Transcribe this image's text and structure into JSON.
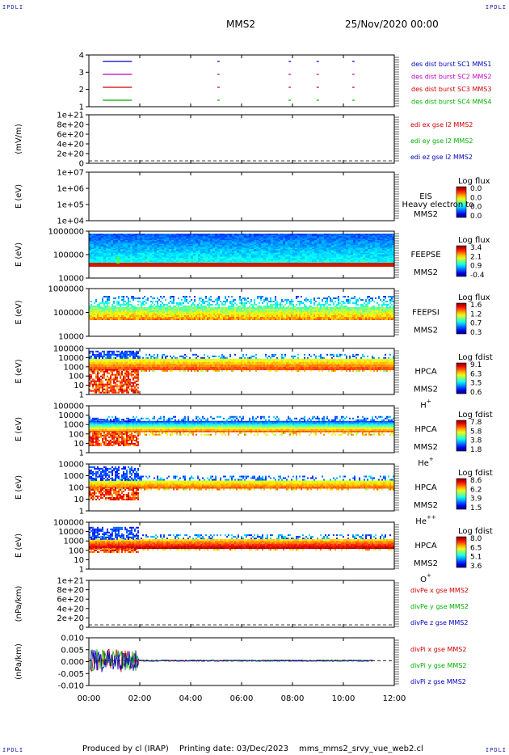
{
  "corner_marks": {
    "tl": "IPDLI",
    "tr": "IPDLI",
    "bl": "IPDLI",
    "br": "IPDLI"
  },
  "header": {
    "mission": "MMS2",
    "date": "25/Nov/2020 00:00"
  },
  "footer": {
    "produced_by": "Produced by cl (IRAP)",
    "printing_date": "Printing date: 03/Dec/2023",
    "script": "mms_mms2_srvy_vue_web2.cl"
  },
  "time_axis": {
    "ticks": [
      "00:00",
      "02:00",
      "04:00",
      "06:00",
      "08:00",
      "10:00",
      "12:00"
    ],
    "range_hours": [
      0,
      12
    ]
  },
  "chart_data": [
    {
      "type": "line",
      "panel": "burst",
      "yticks": [
        "1",
        "2",
        "3",
        "4"
      ],
      "ylim": [
        0.5,
        4.5
      ],
      "series": [
        {
          "name": "des dist burst SC1 MMS1",
          "color": "#0000c0",
          "y": 4,
          "intervals_h": [
            [
              0.45,
              1.6
            ],
            [
              4.95,
              5.0
            ],
            [
              7.75,
              7.8
            ],
            [
              8.85,
              8.9
            ],
            [
              10.25,
              10.3
            ]
          ]
        },
        {
          "name": "des dist burst SC2 MMS2",
          "color": "#c000c0",
          "y": 3,
          "intervals_h": [
            [
              0.45,
              1.6
            ],
            [
              4.95,
              5.0
            ],
            [
              7.75,
              7.8
            ],
            [
              8.85,
              8.9
            ],
            [
              10.25,
              10.3
            ]
          ]
        },
        {
          "name": "des dist burst SC3 MMS3",
          "color": "#d00000",
          "y": 2,
          "intervals_h": [
            [
              0.45,
              1.6
            ],
            [
              4.95,
              5.0
            ],
            [
              7.75,
              7.8
            ],
            [
              8.85,
              8.9
            ],
            [
              10.25,
              10.3
            ]
          ]
        },
        {
          "name": "des dist burst SC4 MMS4",
          "color": "#00b000",
          "y": 1,
          "intervals_h": [
            [
              0.45,
              1.6
            ],
            [
              4.95,
              5.0
            ],
            [
              7.75,
              7.8
            ],
            [
              8.85,
              8.9
            ],
            [
              10.25,
              10.3
            ]
          ]
        }
      ]
    },
    {
      "type": "line",
      "panel": "edi",
      "ylabel": "(mV/m)",
      "yticks": [
        "0",
        "2e+20",
        "4e+20",
        "6e+20",
        "8e+20",
        "1e+21"
      ],
      "ylim": [
        0,
        1e+21
      ],
      "series": [
        {
          "name": "edi ex gse l2 MMS2",
          "color": "#d00000"
        },
        {
          "name": "edi ey gse l2 MMS2",
          "color": "#00b000"
        },
        {
          "name": "edi ez gse l2 MMS2",
          "color": "#0000c0"
        }
      ]
    },
    {
      "type": "heatmap",
      "panel": "eis",
      "ylabel": "E (eV)",
      "yticks": [
        "1e+04",
        "1e+05",
        "1e+06",
        "1e+07"
      ],
      "instrument": "EIS",
      "spacecraft": "MMS2",
      "overlay_text": "Heavy electron to",
      "colorbar": {
        "title": "Log flux",
        "ticks": [
          "0.0",
          "0.0",
          "0.0",
          "0.0"
        ]
      }
    },
    {
      "type": "heatmap",
      "panel": "feepse",
      "ylabel": "E (eV)",
      "yticks": [
        "10000",
        "100000",
        "1000000"
      ],
      "instrument": "FEEPSE",
      "spacecraft": "MMS2",
      "colorbar": {
        "title": "Log flux",
        "ticks": [
          "3.4",
          "2.1",
          "0.9",
          "-0.4"
        ]
      }
    },
    {
      "type": "heatmap",
      "panel": "feepsi",
      "ylabel": "E (eV)",
      "yticks": [
        "10000",
        "100000",
        "1000000"
      ],
      "instrument": "FEEPSI",
      "spacecraft": "MMS2",
      "colorbar": {
        "title": "Log flux",
        "ticks": [
          "1.6",
          "1.2",
          "0.7",
          "0.3"
        ]
      }
    },
    {
      "type": "heatmap",
      "panel": "hpca_h",
      "ylabel": "E (eV)",
      "yticks": [
        "1",
        "10",
        "100",
        "1000",
        "10000",
        "100000"
      ],
      "instrument": "HPCA",
      "spacecraft": "MMS2",
      "species": "H",
      "species_sup": "+",
      "colorbar": {
        "title": "Log fdist",
        "ticks": [
          "9.1",
          "6.3",
          "3.5",
          "0.6"
        ]
      }
    },
    {
      "type": "heatmap",
      "panel": "hpca_he",
      "ylabel": "E (eV)",
      "yticks": [
        "1",
        "10",
        "100",
        "1000",
        "10000",
        "100000"
      ],
      "instrument": "HPCA",
      "spacecraft": "MMS2",
      "species": "He",
      "species_sup": "+",
      "colorbar": {
        "title": "Log fdist",
        "ticks": [
          "7.8",
          "5.8",
          "3.8",
          "1.8"
        ]
      }
    },
    {
      "type": "heatmap",
      "panel": "hpca_he2",
      "ylabel": "E (eV)",
      "yticks": [
        "1",
        "10",
        "100",
        "1000",
        "10000"
      ],
      "instrument": "HPCA",
      "spacecraft": "MMS2",
      "species": "He",
      "species_sup": "++",
      "colorbar": {
        "title": "Log fdist",
        "ticks": [
          "8.6",
          "6.2",
          "3.9",
          "1.5"
        ]
      }
    },
    {
      "type": "heatmap",
      "panel": "hpca_o",
      "ylabel": "E (eV)",
      "yticks": [
        "1",
        "10",
        "100",
        "1000",
        "10000",
        "100000"
      ],
      "instrument": "HPCA",
      "spacecraft": "MMS2",
      "species": "O",
      "species_sup": "+",
      "colorbar": {
        "title": "Log fdist",
        "ticks": [
          "8.0",
          "6.5",
          "5.1",
          "3.6"
        ]
      }
    },
    {
      "type": "line",
      "panel": "divpe",
      "ylabel": "(nPa/km)",
      "yticks": [
        "0",
        "2e+20",
        "4e+20",
        "6e+20",
        "8e+20",
        "1e+21"
      ],
      "ylim": [
        0,
        1e+21
      ],
      "series": [
        {
          "name": "divPe x gse MMS2",
          "color": "#d00000"
        },
        {
          "name": "divPe y gse MMS2",
          "color": "#00b000"
        },
        {
          "name": "divPe z gse MMS2",
          "color": "#0000c0"
        }
      ]
    },
    {
      "type": "line",
      "panel": "divpi",
      "ylabel": "(nPa/km)",
      "yticks": [
        "-0.010",
        "-0.005",
        "0.000",
        "0.005",
        "0.010"
      ],
      "ylim": [
        -0.013,
        0.012
      ],
      "series": [
        {
          "name": "divPi x gse MMS2",
          "color": "#d00000"
        },
        {
          "name": "divPi y gse MMS2",
          "color": "#00b000"
        },
        {
          "name": "divPi z gse MMS2",
          "color": "#0000c0"
        }
      ]
    }
  ]
}
